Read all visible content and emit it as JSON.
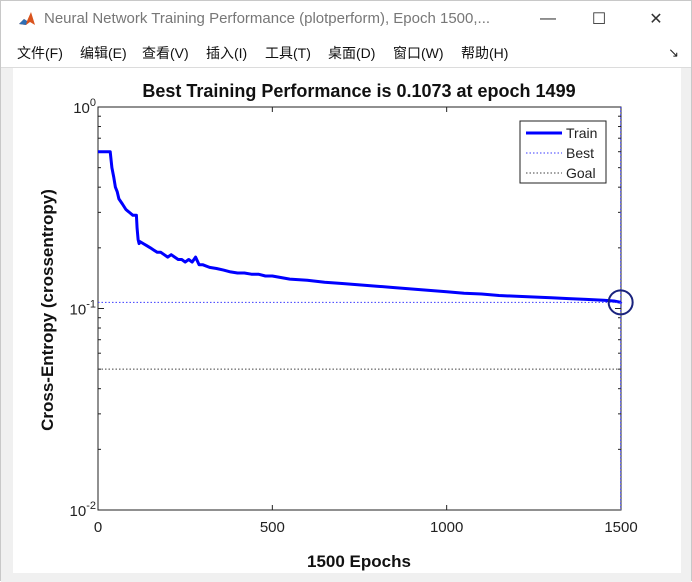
{
  "window": {
    "title": "Neural Network Training Performance (plotperform), Epoch 1500,...",
    "minimize_glyph": "—",
    "maximize_glyph": "☐",
    "close_glyph": "✕",
    "app_icon": "matlab-logo-icon"
  },
  "menu": {
    "items": [
      "文件(F)",
      "编辑(E)",
      "查看(V)",
      "插入(I)",
      "工具(T)",
      "桌面(D)",
      "窗口(W)",
      "帮助(H)"
    ],
    "dock_glyph": "↘"
  },
  "chart_data": {
    "type": "line",
    "title": "Best Training Performance is 0.1073 at epoch 1499",
    "xlabel": "1500 Epochs",
    "ylabel": "Cross-Entropy  (crossentropy)",
    "xlim": [
      0,
      1500
    ],
    "ylim": [
      0.01,
      1
    ],
    "yscale": "log",
    "xticks": [
      0,
      500,
      1000,
      1500
    ],
    "xtick_labels": [
      "0",
      "500",
      "1000",
      "1500"
    ],
    "yticks": [
      1,
      0.1,
      0.01
    ],
    "ytick_labels": [
      {
        "base": "10",
        "exp": "0"
      },
      {
        "base": "10",
        "exp": "-1"
      },
      {
        "base": "10",
        "exp": "-2"
      }
    ],
    "grid": false,
    "legend": {
      "placement": "top-right",
      "entries": [
        "Train",
        "Best",
        "Goal"
      ]
    },
    "series": [
      {
        "name": "Train",
        "color": "#0000ff",
        "style": "solid",
        "x": [
          0,
          10,
          20,
          30,
          35,
          40,
          45,
          50,
          55,
          60,
          70,
          80,
          90,
          100,
          110,
          112,
          115,
          118,
          120,
          130,
          140,
          150,
          160,
          170,
          180,
          190,
          200,
          210,
          220,
          230,
          240,
          250,
          260,
          270,
          280,
          290,
          300,
          320,
          340,
          360,
          380,
          400,
          420,
          440,
          460,
          480,
          500,
          550,
          600,
          650,
          700,
          750,
          800,
          850,
          900,
          950,
          1000,
          1050,
          1100,
          1150,
          1200,
          1250,
          1300,
          1350,
          1400,
          1450,
          1480,
          1499,
          1500
        ],
        "y": [
          0.6,
          0.6,
          0.6,
          0.6,
          0.6,
          0.5,
          0.45,
          0.4,
          0.38,
          0.35,
          0.33,
          0.31,
          0.3,
          0.29,
          0.29,
          0.25,
          0.22,
          0.21,
          0.215,
          0.21,
          0.205,
          0.2,
          0.195,
          0.19,
          0.19,
          0.185,
          0.18,
          0.185,
          0.18,
          0.175,
          0.175,
          0.17,
          0.175,
          0.17,
          0.18,
          0.165,
          0.165,
          0.16,
          0.158,
          0.155,
          0.152,
          0.15,
          0.15,
          0.148,
          0.148,
          0.145,
          0.145,
          0.14,
          0.138,
          0.135,
          0.133,
          0.131,
          0.129,
          0.127,
          0.125,
          0.123,
          0.121,
          0.119,
          0.118,
          0.116,
          0.115,
          0.114,
          0.113,
          0.112,
          0.111,
          0.11,
          0.109,
          0.1073,
          0.108
        ]
      },
      {
        "name": "Best",
        "color": "#3b3bff",
        "style": "dotted",
        "y_value": 0.1073,
        "x_value": 1499
      },
      {
        "name": "Goal",
        "color": "#404040",
        "style": "dotted",
        "y_value": 0.05
      }
    ],
    "best_marker": {
      "x": 1499,
      "y": 0.1073,
      "shape": "circle",
      "color": "#1a237e"
    }
  }
}
